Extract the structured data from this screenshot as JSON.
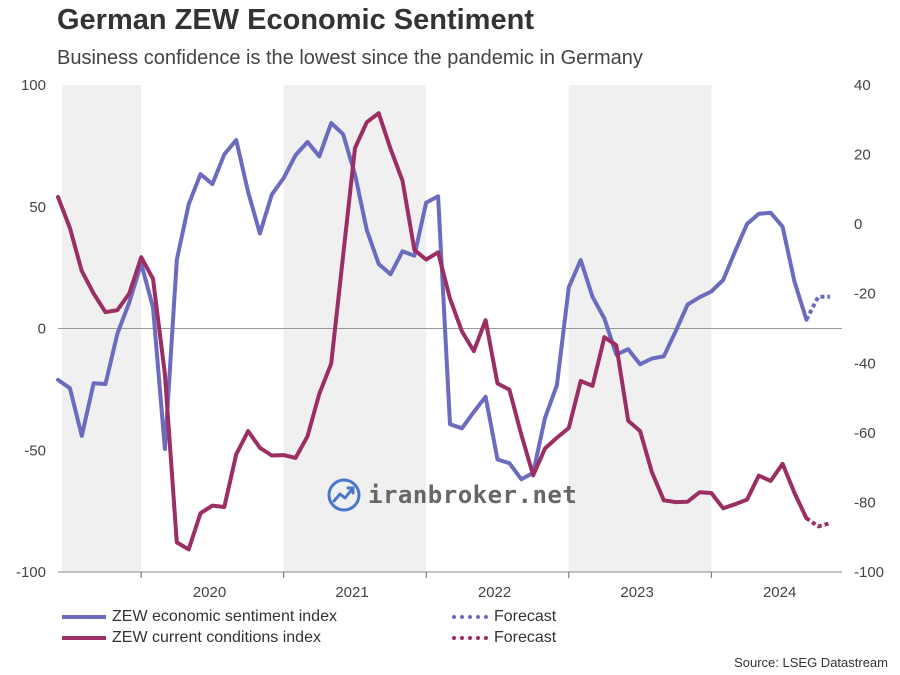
{
  "title": "German ZEW Economic Sentiment",
  "subtitle": "Business confidence is the lowest since the pandemic in Germany",
  "source": "Source: LSEG Datastream",
  "watermark": "iranbroker.net",
  "colors": {
    "sentiment": "#6b6bbf",
    "conditions": "#9b2e63",
    "shade": "#f0f0f0",
    "zero_line": "#999999"
  },
  "legend": [
    {
      "label": "ZEW economic sentiment index",
      "style": "solid",
      "color": "#6b6bbf"
    },
    {
      "label": "Forecast",
      "style": "dotted",
      "color": "#6b6bbf"
    },
    {
      "label": "ZEW current conditions index",
      "style": "solid",
      "color": "#9b2e63"
    },
    {
      "label": "Forecast",
      "style": "dotted",
      "color": "#9b2e63"
    }
  ],
  "chart_data": {
    "type": "line",
    "title": "German ZEW Economic Sentiment",
    "subtitle": "Business confidence is the lowest since the pandemic in Germany",
    "x_tick_labels": [
      "2020",
      "2021",
      "2022",
      "2023",
      "2024"
    ],
    "left_axis": {
      "ylim": [
        -100,
        100
      ],
      "ticks": [
        "100",
        "50",
        "0",
        "-50",
        "-100"
      ]
    },
    "right_axis": {
      "ylim": [
        -100,
        40
      ],
      "ticks": [
        "40",
        "20",
        "0",
        "-20",
        "-40",
        "-60",
        "-80",
        "-100"
      ]
    },
    "shaded_years": [
      "2020",
      "2021",
      "2022",
      "2023",
      "2024"
    ],
    "series": [
      {
        "name": "ZEW economic sentiment index",
        "axis": "left",
        "x": [
          "2019-06",
          "2019-07",
          "2019-08",
          "2019-09",
          "2019-10",
          "2019-11",
          "2019-12",
          "2020-01",
          "2020-02",
          "2020-03",
          "2020-04",
          "2020-05",
          "2020-06",
          "2020-07",
          "2020-08",
          "2020-09",
          "2020-10",
          "2020-11",
          "2020-12",
          "2021-01",
          "2021-02",
          "2021-03",
          "2021-04",
          "2021-05",
          "2021-06",
          "2021-07",
          "2021-08",
          "2021-09",
          "2021-10",
          "2021-11",
          "2021-12",
          "2022-01",
          "2022-02",
          "2022-03",
          "2022-04",
          "2022-05",
          "2022-06",
          "2022-07",
          "2022-08",
          "2022-09",
          "2022-10",
          "2022-11",
          "2022-12",
          "2023-01",
          "2023-02",
          "2023-03",
          "2023-04",
          "2023-05",
          "2023-06",
          "2023-07",
          "2023-08",
          "2023-09",
          "2023-10",
          "2023-11",
          "2023-12",
          "2024-01",
          "2024-02",
          "2024-03",
          "2024-04",
          "2024-05",
          "2024-06",
          "2024-07",
          "2024-08",
          "2024-09"
        ],
        "values": [
          -21.1,
          -24.5,
          -44.1,
          -22.5,
          -22.8,
          -2.1,
          10.7,
          26.7,
          8.7,
          -49.5,
          28.2,
          51.0,
          63.4,
          59.3,
          71.5,
          77.4,
          56.1,
          39.0,
          55.0,
          61.8,
          71.2,
          76.6,
          70.7,
          84.4,
          79.8,
          63.3,
          40.4,
          26.5,
          22.3,
          31.7,
          29.9,
          51.7,
          54.3,
          -39.3,
          -41.0,
          -34.3,
          -28.0,
          -53.8,
          -55.3,
          -61.9,
          -59.2,
          -36.7,
          -23.3,
          16.9,
          28.1,
          13.0,
          4.1,
          -10.7,
          -8.5,
          -14.7,
          -12.3,
          -11.4,
          -1.1,
          9.8,
          12.8,
          15.2,
          19.9,
          31.7,
          42.9,
          47.1,
          47.5,
          41.8,
          19.2,
          3.6
        ]
      },
      {
        "name": "Forecast",
        "axis": "left",
        "style": "dotted",
        "x": [
          "2024-09",
          "2024-10",
          "2024-11"
        ],
        "values": [
          3.6,
          13.0,
          13.0
        ]
      },
      {
        "name": "ZEW current conditions index",
        "axis": "right",
        "x": [
          "2019-06",
          "2019-07",
          "2019-08",
          "2019-09",
          "2019-10",
          "2019-11",
          "2019-12",
          "2020-01",
          "2020-02",
          "2020-03",
          "2020-04",
          "2020-05",
          "2020-06",
          "2020-07",
          "2020-08",
          "2020-09",
          "2020-10",
          "2020-11",
          "2020-12",
          "2021-01",
          "2021-02",
          "2021-03",
          "2021-04",
          "2021-05",
          "2021-06",
          "2021-07",
          "2021-08",
          "2021-09",
          "2021-10",
          "2021-11",
          "2021-12",
          "2022-01",
          "2022-02",
          "2022-03",
          "2022-04",
          "2022-05",
          "2022-06",
          "2022-07",
          "2022-08",
          "2022-09",
          "2022-10",
          "2022-11",
          "2022-12",
          "2023-01",
          "2023-02",
          "2023-03",
          "2023-04",
          "2023-05",
          "2023-06",
          "2023-07",
          "2023-08",
          "2023-09",
          "2023-10",
          "2023-11",
          "2023-12",
          "2024-01",
          "2024-02",
          "2024-03",
          "2024-04",
          "2024-05",
          "2024-06",
          "2024-07",
          "2024-08",
          "2024-09"
        ],
        "values": [
          7.8,
          -1.1,
          -13.5,
          -19.9,
          -25.3,
          -24.7,
          -19.9,
          -9.5,
          -15.7,
          -43.1,
          -91.5,
          -93.5,
          -83.1,
          -80.9,
          -81.3,
          -66.2,
          -59.5,
          -64.3,
          -66.5,
          -66.4,
          -67.2,
          -61.0,
          -48.8,
          -40.1,
          -9.1,
          21.9,
          29.3,
          31.9,
          21.6,
          12.5,
          -7.4,
          -10.2,
          -8.1,
          -21.4,
          -30.8,
          -36.5,
          -27.6,
          -45.8,
          -47.6,
          -60.5,
          -72.2,
          -64.5,
          -61.4,
          -58.6,
          -45.1,
          -46.5,
          -32.5,
          -34.8,
          -56.5,
          -59.5,
          -71.3,
          -79.4,
          -79.9,
          -79.8,
          -77.1,
          -77.3,
          -81.7,
          -80.5,
          -79.2,
          -72.3,
          -73.8,
          -68.9,
          -77.3,
          -84.5
        ]
      },
      {
        "name": "Forecast",
        "axis": "right",
        "style": "dotted",
        "x": [
          "2024-09",
          "2024-10",
          "2024-11"
        ],
        "values": [
          -84.5,
          -86.9,
          -86.0
        ]
      }
    ],
    "grid": false,
    "legend_position": "bottom-left"
  }
}
